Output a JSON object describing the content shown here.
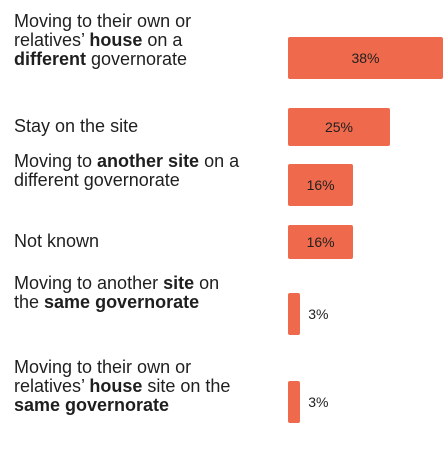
{
  "chart_data": {
    "type": "bar",
    "orientation": "horizontal",
    "color": "#ef6a4c",
    "categories": [
      [
        {
          "text": "Moving to their own or relatives’ "
        },
        {
          "text": "house",
          "bold": true
        },
        {
          "text": " on a "
        },
        {
          "text": "different",
          "bold": true
        },
        {
          "text": " governorate"
        }
      ],
      [
        {
          "text": "Stay on the site"
        }
      ],
      [
        {
          "text": "Moving to "
        },
        {
          "text": "another site",
          "bold": true
        },
        {
          "text": " on a different governorate"
        }
      ],
      [
        {
          "text": "Not known"
        }
      ],
      [
        {
          "text": "Moving to another "
        },
        {
          "text": "site",
          "bold": true
        },
        {
          "text": " on the "
        },
        {
          "text": "same governorate",
          "bold": true
        }
      ],
      [
        {
          "text": "Moving to their own or relatives’ "
        },
        {
          "text": "house",
          "bold": true
        },
        {
          "text": " site on the "
        },
        {
          "text": "same governorate",
          "bold": true
        }
      ]
    ],
    "values": [
      38,
      25,
      16,
      16,
      3,
      3
    ],
    "value_labels": [
      "38%",
      "25%",
      "16%",
      "16%",
      "3%",
      "3%"
    ]
  }
}
